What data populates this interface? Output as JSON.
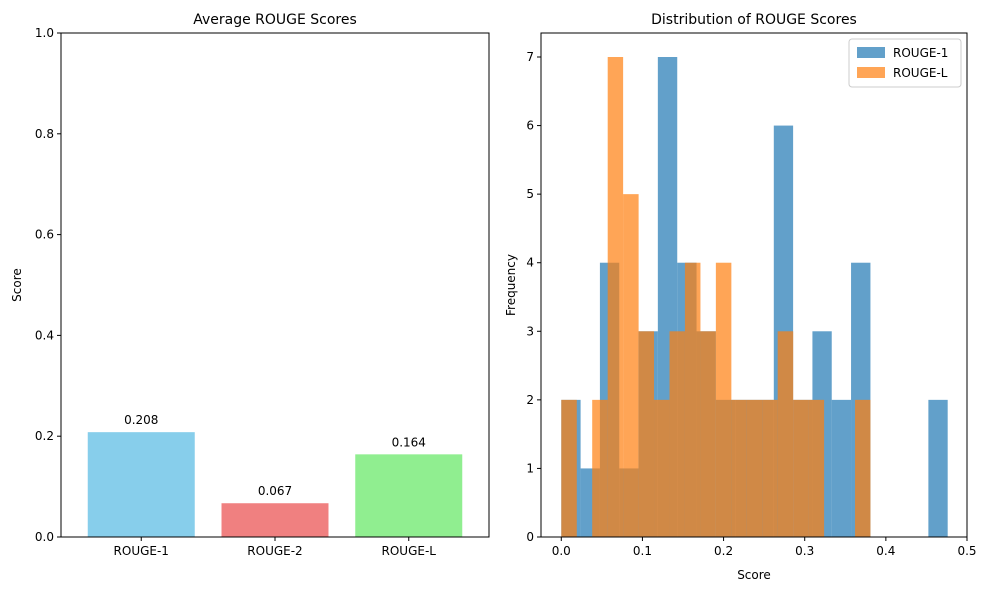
{
  "chart_data": [
    {
      "type": "bar",
      "title": "Average ROUGE Scores",
      "xlabel": "",
      "ylabel": "Score",
      "ylim": [
        0,
        1
      ],
      "yticks": [
        "0.0",
        "0.2",
        "0.4",
        "0.6",
        "0.8",
        "1.0"
      ],
      "categories": [
        "ROUGE-1",
        "ROUGE-2",
        "ROUGE-L"
      ],
      "values": [
        0.208,
        0.067,
        0.164
      ],
      "data_labels": [
        "0.208",
        "0.067",
        "0.164"
      ],
      "colors": [
        "#87ceeb",
        "#f08080",
        "#90ee90"
      ],
      "grid": false
    },
    {
      "type": "histogram",
      "title": "Distribution of ROUGE Scores",
      "xlabel": "Score",
      "ylabel": "Frequency",
      "xlim": [
        -0.025,
        0.5
      ],
      "ylim": [
        0,
        7.35
      ],
      "xticks": [
        "0.0",
        "0.1",
        "0.2",
        "0.3",
        "0.4",
        "0.5"
      ],
      "yticks": [
        "0",
        "1",
        "2",
        "3",
        "4",
        "5",
        "6",
        "7"
      ],
      "legend_position": "top-right",
      "grid": false,
      "series": [
        {
          "name": "ROUGE-1",
          "color": "#1f77b4",
          "alpha": 0.7,
          "bin_edges": [
            0,
            0.0238,
            0.0476,
            0.0714,
            0.0952,
            0.119,
            0.1429,
            0.1667,
            0.1905,
            0.2143,
            0.2381,
            0.2619,
            0.2857,
            0.3095,
            0.3333,
            0.3571,
            0.381,
            0.4048,
            0.4286,
            0.4524,
            0.4762
          ],
          "counts": [
            2,
            1,
            4,
            1,
            3,
            7,
            4,
            3,
            2,
            2,
            2,
            6,
            2,
            3,
            2,
            4,
            0,
            0,
            0,
            2
          ]
        },
        {
          "name": "ROUGE-L",
          "color": "#ff7f0e",
          "alpha": 0.7,
          "bin_edges": [
            0,
            0.0191,
            0.0381,
            0.0572,
            0.0762,
            0.0953,
            0.1143,
            0.1334,
            0.1524,
            0.1715,
            0.1905,
            0.2096,
            0.2286,
            0.2477,
            0.2667,
            0.2858,
            0.3048,
            0.3239,
            0.3429,
            0.362,
            0.381
          ],
          "counts": [
            2,
            0,
            2,
            7,
            5,
            3,
            2,
            3,
            4,
            3,
            4,
            2,
            2,
            2,
            3,
            2,
            2,
            0,
            0,
            2
          ]
        }
      ]
    }
  ]
}
